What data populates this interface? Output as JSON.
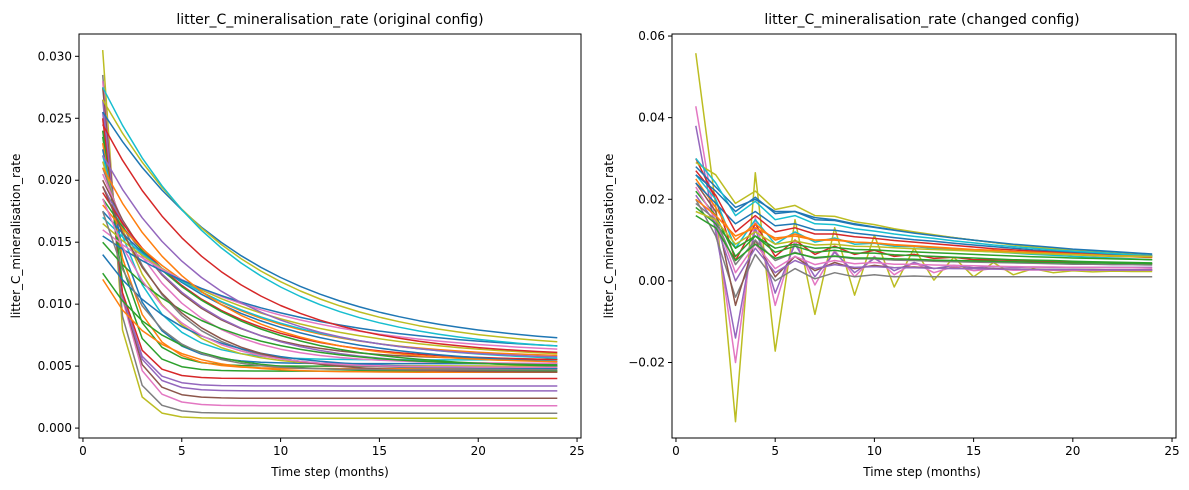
{
  "chart_data": [
    {
      "type": "line",
      "title": "litter_C_mineralisation_rate (original config)",
      "xlabel": "Time step (months)",
      "ylabel": "litter_C_mineralisation_rate",
      "xlim": [
        -0.2,
        25.2
      ],
      "ylim": [
        -0.0008,
        0.0318
      ],
      "xticks": [
        0,
        5,
        10,
        15,
        20,
        25
      ],
      "yticks": [
        0.0,
        0.005,
        0.01,
        0.015,
        0.02,
        0.025,
        0.03
      ],
      "ytick_labels": [
        "0.000",
        "0.005",
        "0.010",
        "0.015",
        "0.020",
        "0.025",
        "0.030"
      ],
      "xtick_labels": [
        "0",
        "5",
        "10",
        "15",
        "20",
        "25"
      ],
      "grid": false,
      "legend": "none",
      "x_range": [
        1,
        24
      ],
      "series": [
        {
          "start": 0.0305,
          "end": 0.0008,
          "tau": 0.7,
          "color": "#bcbd22"
        },
        {
          "start": 0.0285,
          "end": 0.0012,
          "tau": 0.8,
          "color": "#7f7f7f"
        },
        {
          "start": 0.028,
          "end": 0.0018,
          "tau": 0.9,
          "color": "#e377c2"
        },
        {
          "start": 0.0275,
          "end": 0.0024,
          "tau": 0.9,
          "color": "#8c564b"
        },
        {
          "start": 0.0265,
          "end": 0.003,
          "tau": 0.9,
          "color": "#9467bd"
        },
        {
          "start": 0.0255,
          "end": 0.0034,
          "tau": 0.9,
          "color": "#9467bd"
        },
        {
          "start": 0.025,
          "end": 0.004,
          "tau": 0.9,
          "color": "#d62728"
        },
        {
          "start": 0.024,
          "end": 0.0046,
          "tau": 1.0,
          "color": "#2ca02c"
        },
        {
          "start": 0.0235,
          "end": 0.005,
          "tau": 1.2,
          "color": "#2ca02c"
        },
        {
          "start": 0.023,
          "end": 0.0048,
          "tau": 1.4,
          "color": "#ff7f0e"
        },
        {
          "start": 0.0225,
          "end": 0.0052,
          "tau": 1.6,
          "color": "#1f77b4"
        },
        {
          "start": 0.022,
          "end": 0.0055,
          "tau": 2.0,
          "color": "#17becf"
        },
        {
          "start": 0.0215,
          "end": 0.005,
          "tau": 2.5,
          "color": "#bcbd22"
        },
        {
          "start": 0.021,
          "end": 0.0048,
          "tau": 3.0,
          "color": "#7f7f7f"
        },
        {
          "start": 0.0205,
          "end": 0.0052,
          "tau": 3.5,
          "color": "#e377c2"
        },
        {
          "start": 0.02,
          "end": 0.0055,
          "tau": 4.0,
          "color": "#8c564b"
        },
        {
          "start": 0.0195,
          "end": 0.005,
          "tau": 4.5,
          "color": "#9467bd"
        },
        {
          "start": 0.019,
          "end": 0.0054,
          "tau": 5.0,
          "color": "#d62728"
        },
        {
          "start": 0.0185,
          "end": 0.0048,
          "tau": 5.5,
          "color": "#2ca02c"
        },
        {
          "start": 0.018,
          "end": 0.0056,
          "tau": 6.0,
          "color": "#ff7f0e"
        },
        {
          "start": 0.0175,
          "end": 0.005,
          "tau": 6.5,
          "color": "#1f77b4"
        },
        {
          "start": 0.017,
          "end": 0.0052,
          "tau": 7.0,
          "color": "#17becf"
        },
        {
          "start": 0.0165,
          "end": 0.0055,
          "tau": 7.5,
          "color": "#bcbd22"
        },
        {
          "start": 0.016,
          "end": 0.0058,
          "tau": 8.0,
          "color": "#e377c2"
        },
        {
          "start": 0.0155,
          "end": 0.006,
          "tau": 8.5,
          "color": "#1f77b4"
        },
        {
          "start": 0.015,
          "end": 0.005,
          "tau": 5.0,
          "color": "#2ca02c"
        },
        {
          "start": 0.014,
          "end": 0.0048,
          "tau": 4.0,
          "color": "#1f77b4"
        },
        {
          "start": 0.0125,
          "end": 0.0046,
          "tau": 3.0,
          "color": "#2ca02c"
        },
        {
          "start": 0.012,
          "end": 0.0045,
          "tau": 2.5,
          "color": "#ff7f0e"
        },
        {
          "start": 0.0255,
          "end": 0.0064,
          "tau": 7.5,
          "color": "#1f77b4"
        },
        {
          "start": 0.0265,
          "end": 0.0062,
          "tau": 7.0,
          "color": "#bcbd22"
        },
        {
          "start": 0.0275,
          "end": 0.006,
          "tau": 6.5,
          "color": "#17becf"
        },
        {
          "start": 0.0245,
          "end": 0.0057,
          "tau": 6.0,
          "color": "#d62728"
        },
        {
          "start": 0.022,
          "end": 0.0055,
          "tau": 5.5,
          "color": "#9467bd"
        },
        {
          "start": 0.021,
          "end": 0.0052,
          "tau": 5.0,
          "color": "#ff7f0e"
        },
        {
          "start": 0.0195,
          "end": 0.0045,
          "tau": 3.5,
          "color": "#8c564b"
        },
        {
          "start": 0.0185,
          "end": 0.0049,
          "tau": 3.0,
          "color": "#e377c2"
        },
        {
          "start": 0.0175,
          "end": 0.0047,
          "tau": 2.2,
          "color": "#7f7f7f"
        }
      ]
    },
    {
      "type": "line",
      "title": "litter_C_mineralisation_rate (changed config)",
      "xlabel": "Time step (months)",
      "ylabel": "litter_C_mineralisation_rate",
      "xlim": [
        -0.2,
        25.2
      ],
      "ylim": [
        -0.0385,
        0.0605
      ],
      "xticks": [
        0,
        5,
        10,
        15,
        20,
        25
      ],
      "yticks": [
        -0.02,
        0.0,
        0.02,
        0.04,
        0.06
      ],
      "ytick_labels": [
        "−0.02",
        "0.00",
        "0.02",
        "0.04",
        "0.06"
      ],
      "xtick_labels": [
        "0",
        "5",
        "10",
        "15",
        "20",
        "25"
      ],
      "grid": false,
      "legend": "none",
      "x_range": [
        1,
        24
      ],
      "series": [
        {
          "color": "#bcbd22",
          "values": [
            0.0558,
            0.0185,
            -0.0345,
            0.0265,
            -0.0172,
            0.015,
            -0.0082,
            0.013,
            -0.0035,
            0.0112,
            -0.0015,
            0.008,
            0.0002,
            0.0058,
            0.001,
            0.0045,
            0.0015,
            0.003,
            0.002,
            0.0025,
            0.0022,
            0.0024,
            0.0023,
            0.0023
          ]
        },
        {
          "color": "#e377c2",
          "values": [
            0.0428,
            0.014,
            -0.02,
            0.0155,
            -0.006,
            0.01,
            -0.001,
            0.0075,
            0.001,
            0.006,
            0.0015,
            0.0045,
            0.002,
            0.0035,
            0.0025,
            0.003,
            0.0026,
            0.0027,
            0.0026,
            0.0026,
            0.0026,
            0.0026,
            0.0026,
            0.0026
          ]
        },
        {
          "color": "#9467bd",
          "values": [
            0.038,
            0.012,
            -0.014,
            0.013,
            -0.003,
            0.009,
            0.001,
            0.007,
            0.002,
            0.0055,
            0.0025,
            0.0045,
            0.003,
            0.0038,
            0.0032,
            0.0035,
            0.0033,
            0.0034,
            0.0033,
            0.0033,
            0.0033,
            0.0033,
            0.0033,
            0.0033
          ]
        },
        {
          "color": "#7f7f7f",
          "values": [
            0.02,
            0.011,
            -0.004,
            0.0065,
            0.0,
            0.003,
            0.0005,
            0.002,
            0.001,
            0.0015,
            0.001,
            0.0012,
            0.001,
            0.001,
            0.001,
            0.001,
            0.001,
            0.001,
            0.001,
            0.001,
            0.001,
            0.001,
            0.001,
            0.001
          ]
        },
        {
          "color": "#d62728",
          "values": [
            0.03,
            0.02,
            0.005,
            0.014,
            0.006,
            0.01,
            0.0065,
            0.0085,
            0.0065,
            0.0075,
            0.006,
            0.0065,
            0.0055,
            0.0058,
            0.0052,
            0.0052,
            0.005,
            0.0049,
            0.0047,
            0.0046,
            0.0045,
            0.0044,
            0.0043,
            0.0042
          ]
        },
        {
          "color": "#1f77b4",
          "values": [
            0.028,
            0.023,
            0.018,
            0.02,
            0.017,
            0.017,
            0.0155,
            0.015,
            0.014,
            0.0132,
            0.0125,
            0.0118,
            0.0112,
            0.0106,
            0.01,
            0.0094,
            0.0089,
            0.0084,
            0.008,
            0.0076,
            0.0072,
            0.0069,
            0.0066,
            0.0063
          ]
        },
        {
          "color": "#bcbd22",
          "values": [
            0.029,
            0.026,
            0.019,
            0.022,
            0.0175,
            0.0185,
            0.016,
            0.0158,
            0.0145,
            0.0138,
            0.0128,
            0.012,
            0.0113,
            0.0106,
            0.01,
            0.0094,
            0.0088,
            0.0083,
            0.0079,
            0.0075,
            0.0071,
            0.0068,
            0.0065,
            0.0062
          ]
        },
        {
          "color": "#17becf",
          "values": [
            0.026,
            0.02,
            0.008,
            0.015,
            0.009,
            0.012,
            0.0095,
            0.0105,
            0.009,
            0.0092,
            0.0085,
            0.0084,
            0.008,
            0.0077,
            0.0074,
            0.0071,
            0.0068,
            0.0065,
            0.0063,
            0.006,
            0.0058,
            0.0056,
            0.0054,
            0.0052
          ]
        },
        {
          "color": "#ff7f0e",
          "values": [
            0.025,
            0.018,
            0.01,
            0.014,
            0.01,
            0.0115,
            0.01,
            0.0102,
            0.0095,
            0.0093,
            0.0088,
            0.0085,
            0.0082,
            0.0079,
            0.0076,
            0.0073,
            0.0071,
            0.0068,
            0.0066,
            0.0064,
            0.0062,
            0.006,
            0.0059,
            0.0057
          ]
        },
        {
          "color": "#2ca02c",
          "values": [
            0.022,
            0.016,
            0.006,
            0.011,
            0.007,
            0.0085,
            0.007,
            0.0075,
            0.0068,
            0.0068,
            0.0064,
            0.0062,
            0.006,
            0.0058,
            0.0056,
            0.0054,
            0.0052,
            0.0051,
            0.005,
            0.0048,
            0.0047,
            0.0046,
            0.0045,
            0.0044
          ]
        },
        {
          "color": "#8c564b",
          "values": [
            0.024,
            0.017,
            -0.006,
            0.01,
            0.001,
            0.006,
            0.0025,
            0.0045,
            0.003,
            0.0038,
            0.0032,
            0.0034,
            0.0031,
            0.0031,
            0.003,
            0.003,
            0.0029,
            0.0029,
            0.0028,
            0.0028,
            0.0028,
            0.0027,
            0.0027,
            0.0027
          ]
        },
        {
          "color": "#1f77b4",
          "values": [
            0.024,
            0.019,
            0.014,
            0.017,
            0.0135,
            0.014,
            0.0125,
            0.0124,
            0.0117,
            0.0112,
            0.0106,
            0.0101,
            0.0097,
            0.0092,
            0.0088,
            0.0084,
            0.008,
            0.0076,
            0.0073,
            0.007,
            0.0068,
            0.0065,
            0.0063,
            0.0061
          ]
        },
        {
          "color": "#e377c2",
          "values": [
            0.023,
            0.015,
            0.002,
            0.009,
            0.003,
            0.006,
            0.004,
            0.005,
            0.0042,
            0.0045,
            0.0041,
            0.0041,
            0.0039,
            0.0038,
            0.0037,
            0.0036,
            0.0035,
            0.0034,
            0.0034,
            0.0033,
            0.0033,
            0.0032,
            0.0032,
            0.0031
          ]
        },
        {
          "color": "#9467bd",
          "values": [
            0.021,
            0.014,
            0.0,
            0.008,
            0.002,
            0.005,
            0.003,
            0.004,
            0.0033,
            0.0035,
            0.0032,
            0.0032,
            0.0031,
            0.003,
            0.003,
            0.0029,
            0.0029,
            0.0028,
            0.0028,
            0.0028,
            0.0027,
            0.0027,
            0.0027,
            0.0027
          ]
        },
        {
          "color": "#d62728",
          "values": [
            0.027,
            0.021,
            0.012,
            0.016,
            0.012,
            0.013,
            0.0115,
            0.0115,
            0.0108,
            0.0104,
            0.0099,
            0.0095,
            0.0091,
            0.0087,
            0.0083,
            0.0079,
            0.0076,
            0.0073,
            0.007,
            0.0067,
            0.0065,
            0.0062,
            0.006,
            0.0058
          ]
        },
        {
          "color": "#2ca02c",
          "values": [
            0.018,
            0.014,
            0.008,
            0.011,
            0.008,
            0.009,
            0.008,
            0.0082,
            0.0077,
            0.0076,
            0.0073,
            0.0071,
            0.0069,
            0.0067,
            0.0065,
            0.0063,
            0.0061,
            0.0059,
            0.0058,
            0.0056,
            0.0055,
            0.0054,
            0.0053,
            0.0052
          ]
        },
        {
          "color": "#17becf",
          "values": [
            0.03,
            0.024,
            0.016,
            0.0195,
            0.015,
            0.016,
            0.014,
            0.0138,
            0.0128,
            0.0122,
            0.0115,
            0.0109,
            0.0104,
            0.0098,
            0.0093,
            0.0088,
            0.0084,
            0.008,
            0.0076,
            0.0073,
            0.007,
            0.0067,
            0.0064,
            0.0062
          ]
        },
        {
          "color": "#ff7f0e",
          "values": [
            0.02,
            0.016,
            0.011,
            0.013,
            0.0105,
            0.011,
            0.01,
            0.01,
            0.0095,
            0.0093,
            0.0089,
            0.0086,
            0.0083,
            0.008,
            0.0077,
            0.0075,
            0.0072,
            0.007,
            0.0068,
            0.0066,
            0.0064,
            0.0062,
            0.0061,
            0.006
          ]
        },
        {
          "color": "#7f7f7f",
          "values": [
            0.019,
            0.015,
            0.004,
            0.01,
            0.005,
            0.007,
            0.0055,
            0.006,
            0.0054,
            0.0054,
            0.0051,
            0.005,
            0.0048,
            0.0047,
            0.0046,
            0.0045,
            0.0044,
            0.0043,
            0.0042,
            0.0041,
            0.0041,
            0.004,
            0.004,
            0.0039
          ]
        },
        {
          "color": "#bcbd22",
          "values": [
            0.017,
            0.015,
            0.009,
            0.012,
            0.009,
            0.0098,
            0.0088,
            0.009,
            0.0085,
            0.0084,
            0.0081,
            0.0079,
            0.0077,
            0.0075,
            0.0073,
            0.0071,
            0.0069,
            0.0067,
            0.0066,
            0.0064,
            0.0063,
            0.0061,
            0.006,
            0.0059
          ]
        },
        {
          "color": "#1f77b4",
          "values": [
            0.026,
            0.022,
            0.017,
            0.0205,
            0.0165,
            0.017,
            0.015,
            0.0148,
            0.0138,
            0.0131,
            0.0124,
            0.0117,
            0.0111,
            0.0105,
            0.01,
            0.0095,
            0.009,
            0.0086,
            0.0082,
            0.0078,
            0.0075,
            0.0072,
            0.0069,
            0.0066
          ]
        },
        {
          "color": "#2ca02c",
          "values": [
            0.016,
            0.013,
            0.005,
            0.009,
            0.0055,
            0.0068,
            0.0057,
            0.0061,
            0.0056,
            0.0056,
            0.0054,
            0.0053,
            0.0051,
            0.005,
            0.0049,
            0.0048,
            0.0047,
            0.0046,
            0.0045,
            0.0044,
            0.0044,
            0.0043,
            0.0043,
            0.0042
          ]
        }
      ]
    }
  ]
}
